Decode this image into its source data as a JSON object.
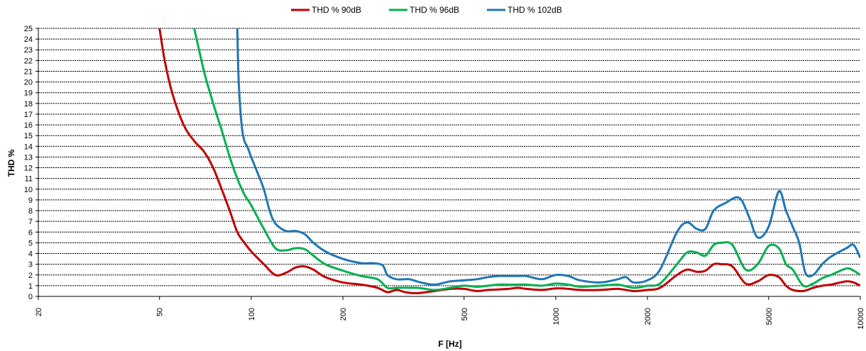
{
  "chart_data": {
    "type": "line",
    "xlabel": "F [Hz]",
    "ylabel": "THD %",
    "x_scale": "log",
    "xlim": [
      20,
      10000
    ],
    "ylim": [
      0,
      25
    ],
    "grid": true,
    "legend_position": "top",
    "x_ticks": [
      20,
      50,
      100,
      200,
      500,
      1000,
      2000,
      5000,
      10000
    ],
    "y_ticks": [
      0,
      1,
      2,
      3,
      4,
      5,
      6,
      7,
      8,
      9,
      10,
      11,
      12,
      13,
      14,
      15,
      16,
      17,
      18,
      19,
      20,
      21,
      22,
      23,
      24,
      25
    ],
    "series": [
      {
        "name": "THD % 90dB",
        "color": "#c00000",
        "x": [
          50,
          52,
          55,
          60,
          65,
          70,
          75,
          80,
          85,
          90,
          95,
          100,
          110,
          120,
          130,
          140,
          150,
          160,
          175,
          200,
          230,
          260,
          280,
          300,
          320,
          350,
          400,
          450,
          500,
          550,
          600,
          650,
          700,
          750,
          800,
          900,
          1000,
          1100,
          1200,
          1400,
          1600,
          1800,
          2000,
          2200,
          2500,
          2700,
          2900,
          3100,
          3300,
          3500,
          3800,
          4200,
          4600,
          5000,
          5400,
          5700,
          6000,
          6500,
          7000,
          7500,
          8000,
          9000,
          9500,
          10000
        ],
        "y": [
          25,
          22,
          19,
          16,
          14.5,
          13.5,
          12,
          10,
          8,
          6,
          5,
          4.2,
          3,
          2,
          2.2,
          2.7,
          2.8,
          2.5,
          1.8,
          1.3,
          1.1,
          0.8,
          0.4,
          0.6,
          0.4,
          0.3,
          0.5,
          0.7,
          0.7,
          0.5,
          0.6,
          0.65,
          0.7,
          0.8,
          0.7,
          0.6,
          0.75,
          0.7,
          0.6,
          0.6,
          0.7,
          0.5,
          0.6,
          0.8,
          2,
          2.5,
          2.3,
          2.4,
          3,
          3,
          2.8,
          1.2,
          1.4,
          2,
          1.8,
          1,
          0.6,
          0.5,
          0.8,
          1,
          1.1,
          1.4,
          1.3,
          1
        ]
      },
      {
        "name": "THD % 96dB",
        "color": "#00b050",
        "x": [
          65,
          70,
          75,
          80,
          85,
          90,
          95,
          100,
          110,
          120,
          130,
          140,
          150,
          160,
          175,
          200,
          230,
          260,
          280,
          300,
          350,
          400,
          450,
          500,
          550,
          600,
          650,
          700,
          750,
          800,
          900,
          1000,
          1100,
          1200,
          1400,
          1600,
          1800,
          2000,
          2200,
          2500,
          2700,
          2900,
          3100,
          3300,
          3500,
          3800,
          4200,
          4600,
          5000,
          5400,
          5700,
          6000,
          6500,
          7000,
          7500,
          8000,
          9000,
          9500,
          10000
        ],
        "y": [
          25,
          21,
          18,
          15.5,
          13,
          11,
          9.5,
          8.5,
          6.3,
          4.5,
          4.3,
          4.5,
          4.4,
          3.8,
          3,
          2.4,
          1.9,
          1.6,
          0.8,
          0.8,
          0.8,
          0.6,
          0.8,
          1,
          0.9,
          1,
          1.1,
          1.1,
          1.1,
          1.1,
          1,
          1.2,
          1.1,
          0.9,
          1,
          1.1,
          0.8,
          1,
          1.2,
          3,
          4.1,
          4.1,
          3.8,
          4.8,
          5,
          4.8,
          2.5,
          3,
          4.7,
          4.5,
          3,
          2.5,
          1,
          1.2,
          1.7,
          2,
          2.6,
          2.4,
          2
        ]
      },
      {
        "name": "THD % 102dB",
        "color": "#1f77b4",
        "x": [
          90,
          91,
          93,
          95,
          97,
          100,
          105,
          110,
          115,
          120,
          130,
          140,
          150,
          160,
          175,
          200,
          230,
          250,
          270,
          280,
          300,
          330,
          360,
          400,
          450,
          500,
          550,
          600,
          650,
          700,
          750,
          800,
          900,
          1000,
          1100,
          1200,
          1400,
          1600,
          1700,
          1800,
          2000,
          2200,
          2500,
          2700,
          2900,
          3100,
          3300,
          3600,
          4000,
          4300,
          4600,
          5000,
          5400,
          5700,
          6000,
          6300,
          6600,
          7000,
          7500,
          8000,
          9000,
          9500,
          10000
        ],
        "y": [
          25,
          20,
          16,
          14.5,
          14,
          13,
          11.5,
          10,
          8,
          6.8,
          6.1,
          6.1,
          5.8,
          5,
          4.2,
          3.5,
          3.1,
          3.1,
          2.9,
          2,
          1.6,
          1.6,
          1.3,
          1.1,
          1.4,
          1.5,
          1.6,
          1.8,
          1.9,
          1.9,
          1.9,
          1.9,
          1.6,
          2,
          1.9,
          1.5,
          1.3,
          1.6,
          1.8,
          1.3,
          1.5,
          2.5,
          6,
          6.9,
          6.3,
          6.3,
          8,
          8.7,
          9.2,
          7.5,
          5.5,
          6.5,
          9.8,
          8,
          6.5,
          5,
          2.2,
          2,
          3,
          3.7,
          4.5,
          4.8,
          3.6
        ]
      }
    ]
  }
}
